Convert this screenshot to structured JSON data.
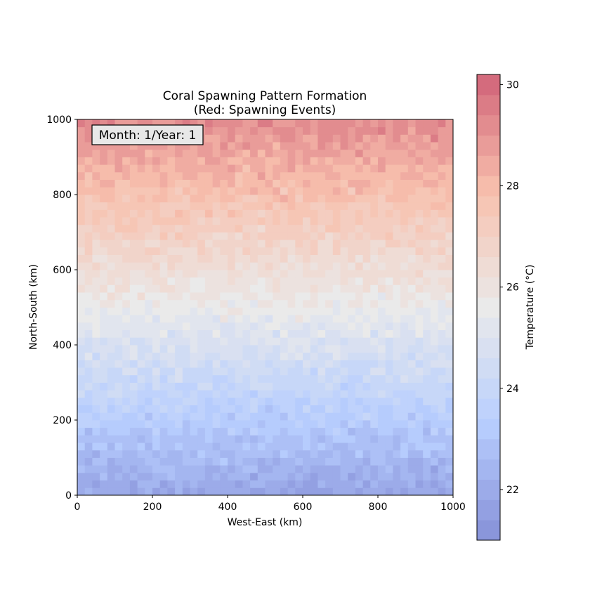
{
  "chart_data": {
    "type": "heatmap",
    "title": "Coral Spawning Pattern Formation",
    "subtitle": "(Red: Spawning Events)",
    "xlabel": "West-East (km)",
    "ylabel": "North-South (km)",
    "xlim": [
      0,
      1000
    ],
    "ylim": [
      0,
      1000
    ],
    "x_ticks": [
      0,
      200,
      400,
      600,
      800,
      1000
    ],
    "y_ticks": [
      0,
      200,
      400,
      600,
      800,
      1000
    ],
    "grid": false,
    "grid_cells": [
      50,
      50
    ],
    "annotation": "Month: 1/Year: 1",
    "colormap": "coolwarm",
    "colorbar": {
      "label": "Temperature (°C)",
      "range": [
        21,
        30.2
      ],
      "ticks": [
        22,
        24,
        26,
        28,
        30
      ],
      "levels": 23,
      "position": "right"
    },
    "temperature_profile": {
      "description_free": true,
      "south_edge": 21.8,
      "y400": 24.8,
      "y600": 26.3,
      "y800": 27.8,
      "north_edge": 29.2,
      "cell_noise": 0.6
    }
  }
}
